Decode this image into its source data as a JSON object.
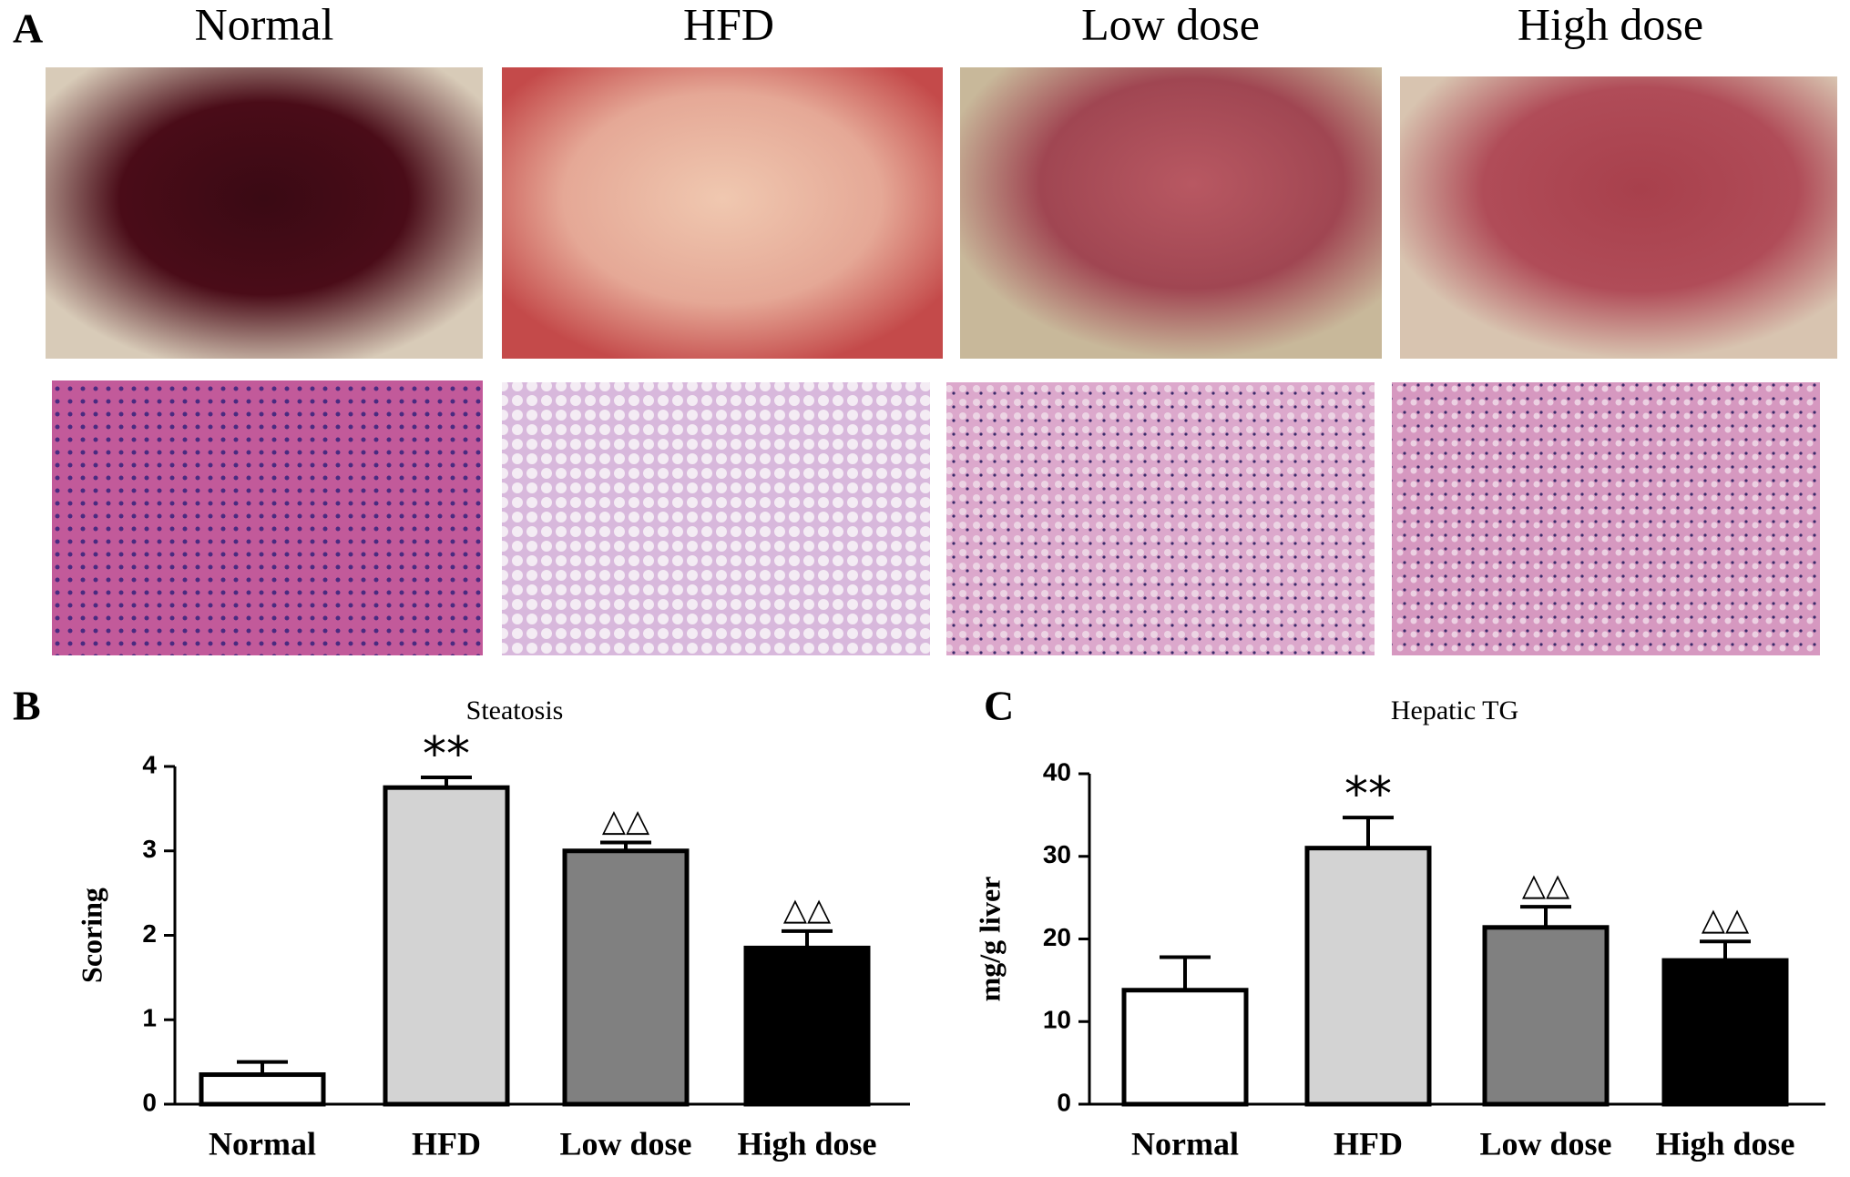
{
  "figure": {
    "panel_label": "A",
    "columns": [
      "Normal",
      "HFD",
      "Low dose",
      "High  dose"
    ]
  },
  "chart_data": [
    {
      "type": "bar",
      "panel_label": "B",
      "title": "Steatosis",
      "y_label": "Scoring",
      "categories": [
        "Normal",
        "HFD",
        "Low dose",
        "High dose"
      ],
      "values": [
        0.35,
        3.75,
        3.0,
        1.85
      ],
      "errors": [
        0.15,
        0.12,
        0.1,
        0.2
      ],
      "annotations": [
        null,
        "**",
        "△△",
        "△△"
      ],
      "colors": [
        "#ffffff",
        "#d3d3d3",
        "#808080",
        "#000000"
      ],
      "ylim": [
        0,
        4
      ],
      "yticks": [
        0,
        1,
        2,
        3,
        4
      ]
    },
    {
      "type": "bar",
      "panel_label": "C",
      "title": "Hepatic TG",
      "y_label": "mg/g liver",
      "categories": [
        "Normal",
        "HFD",
        "Low dose",
        "High dose"
      ],
      "values": [
        13.8,
        31,
        21.4,
        17.4
      ],
      "errors": [
        4,
        3.7,
        2.5,
        2.3
      ],
      "annotations": [
        null,
        "**",
        "△△",
        "△△"
      ],
      "colors": [
        "#ffffff",
        "#d3d3d3",
        "#808080",
        "#000000"
      ],
      "ylim": [
        0,
        40
      ],
      "yticks": [
        0,
        10,
        20,
        30,
        40
      ]
    }
  ]
}
